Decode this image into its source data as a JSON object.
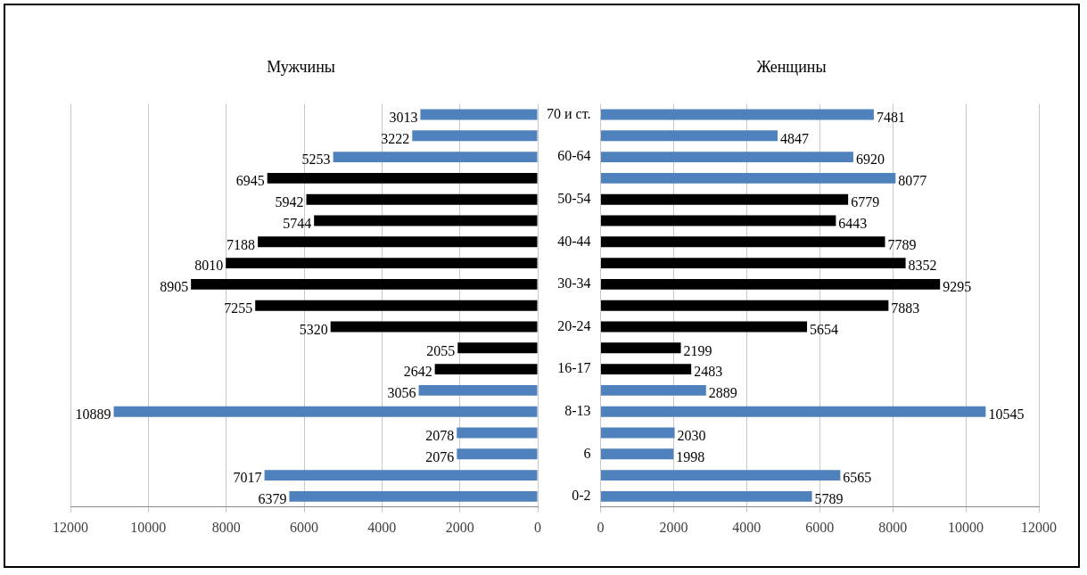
{
  "chart_data": [
    {
      "type": "bar",
      "orientation": "horizontal",
      "title": "Мужчины",
      "categories": [
        null,
        null,
        null,
        null,
        null,
        null,
        null,
        null,
        null,
        null,
        null,
        null,
        null,
        null,
        null,
        null,
        null,
        null,
        null
      ],
      "values": [
        3013,
        3222,
        5253,
        6945,
        5942,
        5744,
        7188,
        8010,
        8905,
        7255,
        5320,
        2055,
        2642,
        3056,
        10889,
        2078,
        2076,
        7017,
        6379
      ],
      "colors": [
        "#4f81bd",
        "#4f81bd",
        "#4f81bd",
        "#000000",
        "#000000",
        "#000000",
        "#000000",
        "#000000",
        "#000000",
        "#000000",
        "#000000",
        "#000000",
        "#000000",
        "#4f81bd",
        "#4f81bd",
        "#4f81bd",
        "#4f81bd",
        "#4f81bd",
        "#4f81bd"
      ],
      "xlim": [
        12000,
        0
      ],
      "xticks": [
        12000,
        10000,
        8000,
        6000,
        4000,
        2000,
        0
      ],
      "grid": "x",
      "data_labels": true
    },
    {
      "type": "bar",
      "orientation": "horizontal",
      "title": "Женщины",
      "categories": [
        "70 и ст.",
        null,
        "60-64",
        null,
        "50-54",
        null,
        "40-44",
        null,
        "30-34",
        null,
        "20-24",
        null,
        "16-17",
        null,
        "8-13",
        null,
        "6",
        null,
        "0-2"
      ],
      "values": [
        7481,
        4847,
        6920,
        8077,
        6779,
        6443,
        7789,
        8352,
        9295,
        7883,
        5654,
        2199,
        2483,
        2889,
        10545,
        2030,
        1998,
        6565,
        5789
      ],
      "colors": [
        "#4f81bd",
        "#4f81bd",
        "#4f81bd",
        "#4f81bd",
        "#000000",
        "#000000",
        "#000000",
        "#000000",
        "#000000",
        "#000000",
        "#000000",
        "#000000",
        "#000000",
        "#4f81bd",
        "#4f81bd",
        "#4f81bd",
        "#4f81bd",
        "#4f81bd",
        "#4f81bd"
      ],
      "xlim": [
        0,
        12000
      ],
      "xticks": [
        0,
        2000,
        4000,
        6000,
        8000,
        10000,
        12000
      ],
      "grid": "x",
      "data_labels": true
    }
  ]
}
